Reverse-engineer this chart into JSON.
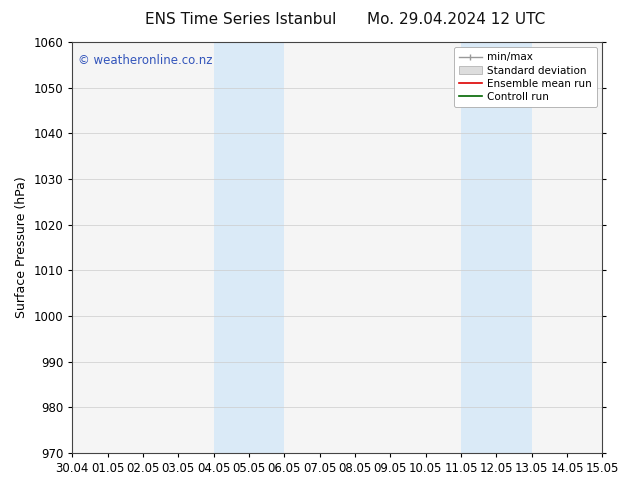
{
  "title_left": "ENS Time Series Istanbul",
  "title_right": "Mo. 29.04.2024 12 UTC",
  "ylabel": "Surface Pressure (hPa)",
  "ylim": [
    970,
    1060
  ],
  "yticks": [
    970,
    980,
    990,
    1000,
    1010,
    1020,
    1030,
    1040,
    1050,
    1060
  ],
  "xtick_labels": [
    "30.04",
    "01.05",
    "02.05",
    "03.05",
    "04.05",
    "05.05",
    "06.05",
    "07.05",
    "08.05",
    "09.05",
    "10.05",
    "11.05",
    "12.05",
    "13.05",
    "14.05",
    "15.05"
  ],
  "shaded_regions": [
    {
      "xstart": 4.0,
      "xend": 5.0,
      "color": "#daeaf7"
    },
    {
      "xstart": 5.0,
      "xend": 6.0,
      "color": "#daeaf7"
    },
    {
      "xstart": 11.0,
      "xend": 12.0,
      "color": "#daeaf7"
    },
    {
      "xstart": 12.0,
      "xend": 13.0,
      "color": "#daeaf7"
    }
  ],
  "watermark_text": "© weatheronline.co.nz",
  "watermark_color": "#3355bb",
  "bg_color": "#ffffff",
  "plot_bg_color": "#f5f5f5",
  "grid_color": "#cccccc",
  "title_fontsize": 11,
  "label_fontsize": 9,
  "tick_fontsize": 8.5,
  "legend_fontsize": 7.5
}
